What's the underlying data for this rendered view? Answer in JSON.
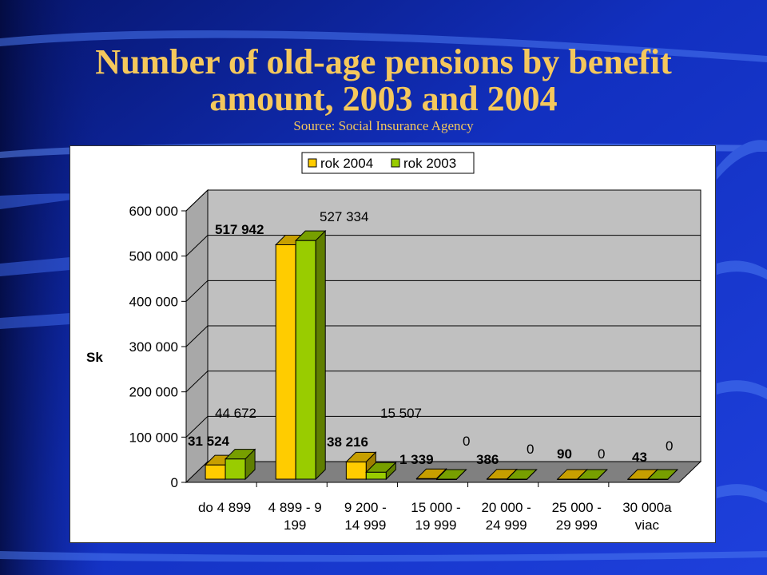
{
  "slide": {
    "title_line1": "Number of old-age pensions by benefit",
    "title_line2": "amount, 2003 and 2004",
    "subtitle": "Source: Social Insurance Agency",
    "colors": {
      "bg_dark": "#0A1F8C",
      "bg_light": "#1E3FD8",
      "title": "#F5C85C"
    }
  },
  "chart_data": {
    "type": "bar",
    "style": "3d-clustered-column",
    "ylabel": "Sk",
    "ylim": [
      0,
      600000
    ],
    "y_ticks": [
      {
        "v": 0,
        "label": "0"
      },
      {
        "v": 100000,
        "label": "100 000"
      },
      {
        "v": 200000,
        "label": "200 000"
      },
      {
        "v": 300000,
        "label": "300 000"
      },
      {
        "v": 400000,
        "label": "400 000"
      },
      {
        "v": 500000,
        "label": "500 000"
      },
      {
        "v": 600000,
        "label": "600 000"
      }
    ],
    "grid": true,
    "legend_position": "top-center",
    "categories": [
      [
        "do 4 899"
      ],
      [
        "4 899 - 9",
        "199"
      ],
      [
        "9 200 -",
        "14 999"
      ],
      [
        "15 000 -",
        "19 999"
      ],
      [
        "20 000 -",
        "24 999"
      ],
      [
        "25 000 -",
        "29 999"
      ],
      [
        "30 000a",
        "viac"
      ]
    ],
    "series": [
      {
        "name": "rok 2004",
        "color": "#FFCC00",
        "values": [
          31524,
          517942,
          38216,
          1339,
          386,
          90,
          43
        ],
        "labels": [
          "31 524",
          "517 942",
          "38 216",
          "1 339",
          "386",
          "90",
          "43"
        ]
      },
      {
        "name": "rok 2003",
        "color": "#99CC00",
        "values": [
          44672,
          527334,
          15507,
          0,
          0,
          0,
          0
        ],
        "labels": [
          "44 672",
          "527 334",
          "15 507",
          "0",
          "0",
          "0",
          "0"
        ]
      }
    ]
  }
}
